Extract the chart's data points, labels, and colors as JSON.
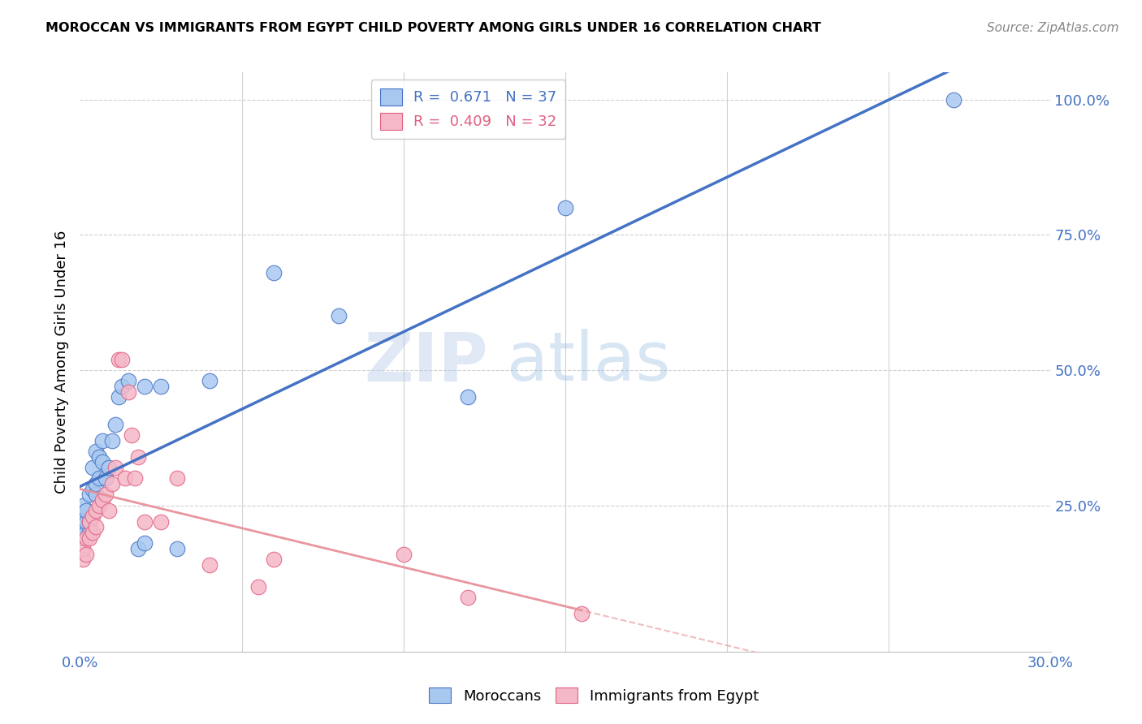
{
  "title": "MOROCCAN VS IMMIGRANTS FROM EGYPT CHILD POVERTY AMONG GIRLS UNDER 16 CORRELATION CHART",
  "source": "Source: ZipAtlas.com",
  "ylabel": "Child Poverty Among Girls Under 16",
  "xlim": [
    0.0,
    0.3
  ],
  "ylim": [
    -0.02,
    1.05
  ],
  "xticks": [
    0.0,
    0.05,
    0.1,
    0.15,
    0.2,
    0.25,
    0.3
  ],
  "xticklabels": [
    "0.0%",
    "",
    "",
    "",
    "",
    "",
    "30.0%"
  ],
  "yticks_right": [
    0.0,
    0.25,
    0.5,
    0.75,
    1.0
  ],
  "ytick_right_labels": [
    "",
    "25.0%",
    "50.0%",
    "75.0%",
    "100.0%"
  ],
  "legend_r1": "R =  0.671",
  "legend_n1": "N = 37",
  "legend_r2": "R =  0.409",
  "legend_n2": "N = 32",
  "blue_scatter_color": "#A8C8F0",
  "blue_edge_color": "#4472C4",
  "pink_scatter_color": "#F5B8C8",
  "pink_edge_color": "#E06080",
  "blue_line_color": "#4472C4",
  "pink_line_color": "#E8909A",
  "right_axis_color": "#4472C4",
  "watermark": "ZIPatlas",
  "moroccan_x": [
    0.001,
    0.001,
    0.001,
    0.001,
    0.002,
    0.002,
    0.002,
    0.003,
    0.003,
    0.003,
    0.004,
    0.004,
    0.005,
    0.005,
    0.005,
    0.006,
    0.006,
    0.007,
    0.007,
    0.008,
    0.009,
    0.01,
    0.011,
    0.012,
    0.013,
    0.015,
    0.018,
    0.02,
    0.02,
    0.025,
    0.03,
    0.04,
    0.06,
    0.08,
    0.12,
    0.15,
    0.27
  ],
  "moroccan_y": [
    0.19,
    0.21,
    0.23,
    0.25,
    0.2,
    0.22,
    0.24,
    0.2,
    0.22,
    0.27,
    0.28,
    0.32,
    0.35,
    0.27,
    0.29,
    0.3,
    0.34,
    0.33,
    0.37,
    0.3,
    0.32,
    0.37,
    0.4,
    0.45,
    0.47,
    0.48,
    0.17,
    0.18,
    0.47,
    0.47,
    0.17,
    0.48,
    0.68,
    0.6,
    0.45,
    0.8,
    1.0
  ],
  "egypt_x": [
    0.001,
    0.001,
    0.002,
    0.002,
    0.003,
    0.003,
    0.004,
    0.004,
    0.005,
    0.005,
    0.006,
    0.007,
    0.008,
    0.009,
    0.01,
    0.011,
    0.012,
    0.013,
    0.014,
    0.015,
    0.016,
    0.017,
    0.018,
    0.02,
    0.025,
    0.03,
    0.04,
    0.055,
    0.06,
    0.1,
    0.12,
    0.155
  ],
  "egypt_y": [
    0.15,
    0.17,
    0.16,
    0.19,
    0.19,
    0.22,
    0.2,
    0.23,
    0.21,
    0.24,
    0.25,
    0.26,
    0.27,
    0.24,
    0.29,
    0.32,
    0.52,
    0.52,
    0.3,
    0.46,
    0.38,
    0.3,
    0.34,
    0.22,
    0.22,
    0.3,
    0.14,
    0.1,
    0.15,
    0.16,
    0.08,
    0.05
  ]
}
